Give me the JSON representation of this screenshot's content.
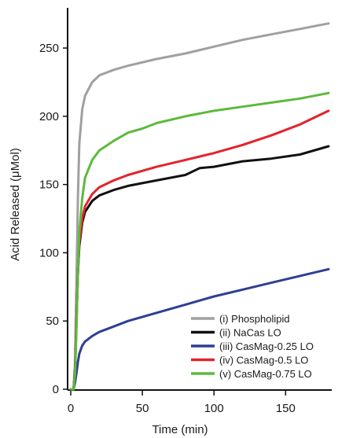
{
  "chart_data": {
    "type": "line",
    "xlabel": "Time (min)",
    "ylabel": "Acid Released (μMol)",
    "xlim": [
      0,
      180
    ],
    "ylim": [
      0,
      280
    ],
    "xticks": [
      0,
      50,
      100,
      150
    ],
    "yticks": [
      0,
      50,
      100,
      150,
      200,
      250
    ],
    "grid": false,
    "legend_position": "bottom-right",
    "series": [
      {
        "name": "(i)   Phospholipid",
        "color": "#a0a0a0",
        "x": [
          0,
          2,
          3,
          4,
          5,
          6,
          8,
          10,
          15,
          20,
          30,
          40,
          60,
          80,
          100,
          120,
          140,
          160,
          180
        ],
        "y": [
          0,
          0,
          20,
          80,
          140,
          180,
          205,
          215,
          225,
          230,
          234,
          237,
          242,
          246,
          251,
          256,
          260,
          264,
          268
        ]
      },
      {
        "name": "(ii)  NaCas LO",
        "color": "#111111",
        "x": [
          0,
          2,
          3,
          4,
          5,
          6,
          8,
          10,
          15,
          20,
          30,
          40,
          60,
          80,
          90,
          100,
          110,
          120,
          140,
          160,
          180
        ],
        "y": [
          0,
          0,
          15,
          50,
          85,
          105,
          122,
          130,
          138,
          142,
          146,
          149,
          153,
          157,
          162,
          163,
          165,
          167,
          169,
          172,
          178
        ]
      },
      {
        "name": "(iii) CasMag-0.25 LO",
        "color": "#2e3f93",
        "x": [
          0,
          2,
          3,
          4,
          5,
          6,
          8,
          10,
          15,
          20,
          30,
          40,
          60,
          80,
          100,
          120,
          140,
          160,
          180
        ],
        "y": [
          0,
          0,
          5,
          12,
          20,
          26,
          32,
          35,
          39,
          42,
          46,
          50,
          56,
          62,
          68,
          73,
          78,
          83,
          88
        ]
      },
      {
        "name": "(iv) CasMag-0.5 LO",
        "color": "#e3232a",
        "x": [
          0,
          2,
          3,
          4,
          5,
          6,
          8,
          10,
          15,
          20,
          30,
          40,
          60,
          80,
          100,
          120,
          140,
          160,
          180
        ],
        "y": [
          0,
          0,
          15,
          50,
          85,
          108,
          125,
          134,
          143,
          148,
          153,
          157,
          163,
          168,
          173,
          179,
          186,
          194,
          204
        ]
      },
      {
        "name": "(v)  CasMag-0.75 LO",
        "color": "#5cba3c",
        "x": [
          0,
          2,
          3,
          4,
          5,
          6,
          8,
          10,
          15,
          20,
          30,
          40,
          50,
          60,
          80,
          100,
          120,
          140,
          160,
          180
        ],
        "y": [
          0,
          0,
          12,
          45,
          85,
          115,
          140,
          155,
          168,
          175,
          182,
          188,
          191,
          195,
          200,
          204,
          207,
          210,
          213,
          217
        ]
      }
    ]
  }
}
